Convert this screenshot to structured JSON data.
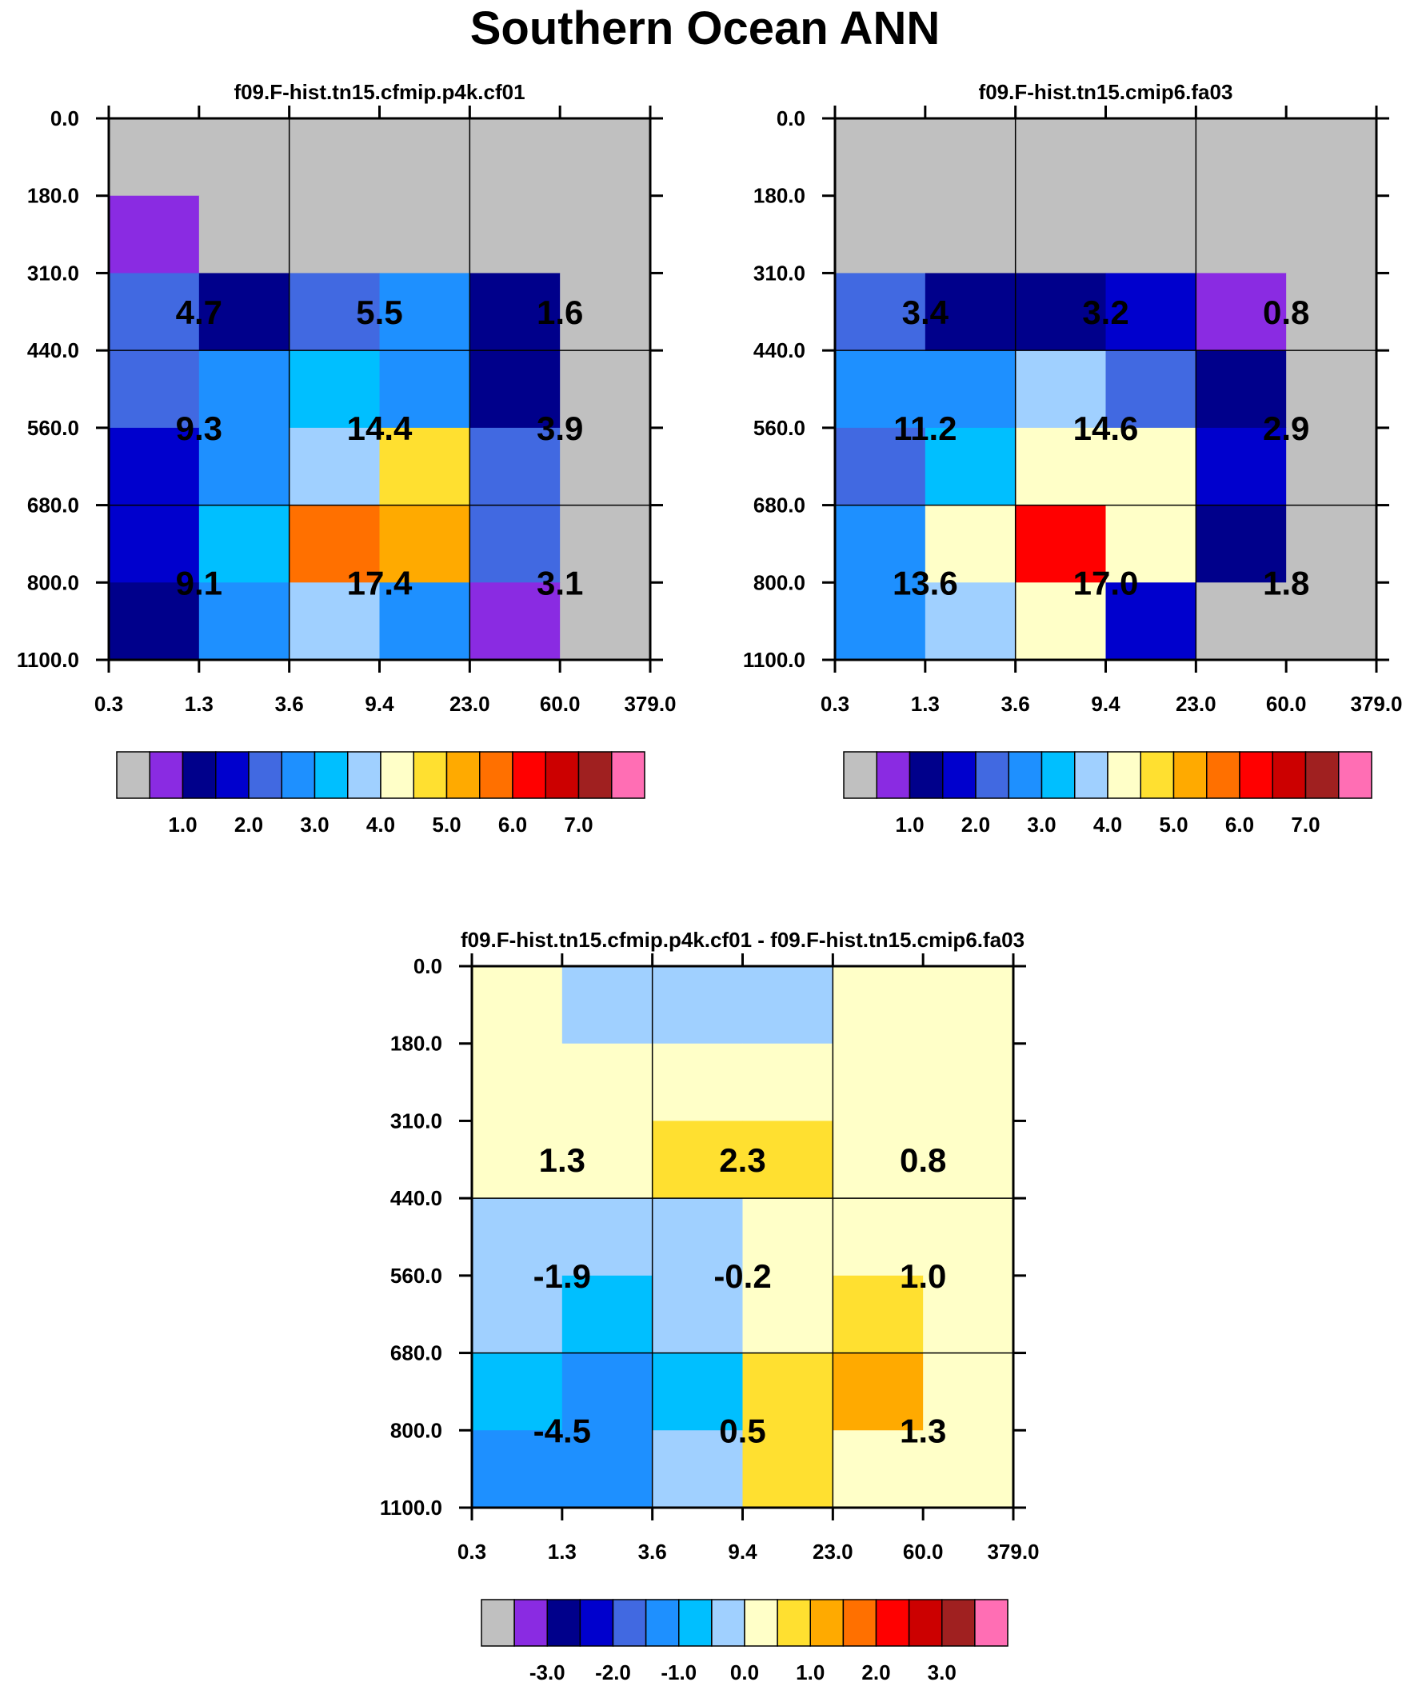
{
  "title": "Southern Ocean ANN",
  "y_tick_labels": [
    "0.0",
    "180.0",
    "310.0",
    "440.0",
    "560.0",
    "680.0",
    "800.0",
    "1100.0"
  ],
  "x_tick_labels": [
    "0.3",
    "1.3",
    "3.6",
    "9.4",
    "23.0",
    "60.0",
    "379.0"
  ],
  "palette": {
    "missing": "#c0c0c0",
    "colors": [
      "#c0c0c0",
      "#8a2be2",
      "#00008b",
      "#0000cd",
      "#4169e1",
      "#1e90ff",
      "#00bfff",
      "#a0d0ff",
      "#ffffc8",
      "#ffe030",
      "#ffaa00",
      "#ff7000",
      "#ff0000",
      "#cc0000",
      "#a02020",
      "#ff6eb4"
    ]
  },
  "chart_data": [
    {
      "type": "heatmap",
      "title": "f09.F-hist.tn15.cfmip.p4k.cf01",
      "xlabel": "",
      "ylabel": "",
      "x_edges": [
        "0.3",
        "1.3",
        "3.6",
        "9.4",
        "23.0",
        "60.0",
        "379.0"
      ],
      "y_edges": [
        "0.0",
        "180.0",
        "310.0",
        "440.0",
        "560.0",
        "680.0",
        "800.0",
        "1100.0"
      ],
      "cell_color_index": [
        [
          0,
          0,
          0,
          0,
          0,
          0
        ],
        [
          1,
          0,
          0,
          0,
          0,
          0
        ],
        [
          4,
          2,
          4,
          5,
          2,
          0
        ],
        [
          4,
          5,
          6,
          5,
          2,
          0
        ],
        [
          3,
          5,
          7,
          9,
          4,
          0
        ],
        [
          3,
          6,
          11,
          10,
          4,
          0
        ],
        [
          2,
          5,
          7,
          5,
          1,
          0
        ]
      ],
      "summary_values": [
        [
          "4.7",
          "5.5",
          "1.6"
        ],
        [
          "9.3",
          "14.4",
          "3.9"
        ],
        [
          "9.1",
          "17.4",
          "3.1"
        ]
      ],
      "colorbar": {
        "labels": [
          "1.0",
          "2.0",
          "3.0",
          "4.0",
          "5.0",
          "6.0",
          "7.0"
        ],
        "first_label_after_box": 2
      }
    },
    {
      "type": "heatmap",
      "title": "f09.F-hist.tn15.cmip6.fa03",
      "xlabel": "",
      "ylabel": "",
      "x_edges": [
        "0.3",
        "1.3",
        "3.6",
        "9.4",
        "23.0",
        "60.0",
        "379.0"
      ],
      "y_edges": [
        "0.0",
        "180.0",
        "310.0",
        "440.0",
        "560.0",
        "680.0",
        "800.0",
        "1100.0"
      ],
      "cell_color_index": [
        [
          0,
          0,
          0,
          0,
          0,
          0
        ],
        [
          0,
          0,
          0,
          0,
          0,
          0
        ],
        [
          4,
          2,
          2,
          3,
          1,
          0
        ],
        [
          5,
          5,
          7,
          4,
          2,
          0
        ],
        [
          4,
          6,
          8,
          8,
          3,
          0
        ],
        [
          5,
          8,
          12,
          8,
          2,
          0
        ],
        [
          5,
          7,
          8,
          3,
          0,
          0
        ]
      ],
      "summary_values": [
        [
          "3.4",
          "3.2",
          "0.8"
        ],
        [
          "11.2",
          "14.6",
          "2.9"
        ],
        [
          "13.6",
          "17.0",
          "1.8"
        ]
      ],
      "colorbar": {
        "labels": [
          "1.0",
          "2.0",
          "3.0",
          "4.0",
          "5.0",
          "6.0",
          "7.0"
        ],
        "first_label_after_box": 2
      }
    },
    {
      "type": "heatmap",
      "title": "f09.F-hist.tn15.cfmip.p4k.cf01 - f09.F-hist.tn15.cmip6.fa03",
      "xlabel": "",
      "ylabel": "",
      "x_edges": [
        "0.3",
        "1.3",
        "3.6",
        "9.4",
        "23.0",
        "60.0",
        "379.0"
      ],
      "y_edges": [
        "0.0",
        "180.0",
        "310.0",
        "440.0",
        "560.0",
        "680.0",
        "800.0",
        "1100.0"
      ],
      "cell_color_index": [
        [
          8,
          7,
          7,
          7,
          8,
          8
        ],
        [
          8,
          8,
          8,
          8,
          8,
          8
        ],
        [
          8,
          8,
          9,
          9,
          8,
          8
        ],
        [
          7,
          7,
          7,
          8,
          8,
          8
        ],
        [
          7,
          6,
          7,
          8,
          9,
          8
        ],
        [
          6,
          5,
          6,
          9,
          10,
          8
        ],
        [
          5,
          5,
          7,
          9,
          8,
          8
        ]
      ],
      "summary_values": [
        [
          "1.3",
          "2.3",
          "0.8"
        ],
        [
          "-1.9",
          "-0.2",
          "1.0"
        ],
        [
          "-4.5",
          "0.5",
          "1.3"
        ]
      ],
      "colorbar": {
        "labels": [
          "-3.0",
          "-2.0",
          "-1.0",
          "0.0",
          "1.0",
          "2.0",
          "3.0"
        ],
        "first_label_after_box": 2
      }
    }
  ]
}
